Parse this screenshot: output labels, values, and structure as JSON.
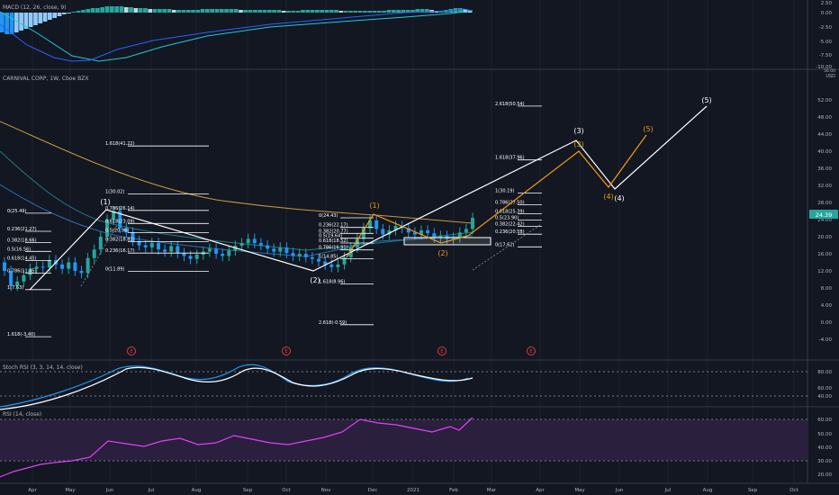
{
  "colors": {
    "background": "#131722",
    "grid": "#1e2230",
    "separator": "#363a45",
    "text": "#b2b5be",
    "bull": "#26a69a",
    "bear": "#2196f3",
    "macd_line": "#2962ff",
    "macd_signal": "#26c6da",
    "ema_orange": "#c79a3b",
    "ema_teal": "#1e7f88",
    "ema_blue": "#2a6fb0",
    "wave_white": "#ffffff",
    "wave_orange": "#f39c12",
    "rsi": "#e040fb",
    "rsi_band": "#2a1f3d",
    "event_marker": "#e53935",
    "price_tag": "#26a69a"
  },
  "macd": {
    "title": "MACD (12, 26, close, 9)",
    "axis_ticks": [
      "2.50",
      "0.00",
      "-2.50",
      "-5.00",
      "-7.50",
      "-10.00"
    ]
  },
  "price": {
    "title": "CARNIVAL CORP, 1W, Cboe BZX",
    "currency": "USD",
    "top_value": "56.00",
    "axis_ticks": [
      "52.00",
      "48.00",
      "44.00",
      "40.00",
      "36.00",
      "32.00",
      "28.00",
      "24.00",
      "20.00",
      "16.00",
      "12.00",
      "8.00",
      "4.00",
      "0.00",
      "-4.00"
    ],
    "last_price": "24.39",
    "fib_left": [
      "0(25.49)",
      "0.236(21.27)",
      "0.382(18.66)",
      "0.5(16.56)",
      "0.618(14.45)",
      "0.786(11.45)",
      "1(7.63)",
      "1.618(-3.40)"
    ],
    "fib_mid": [
      "1.618(41.22)",
      "1(30.02)",
      "0.786(26.14)",
      "0.618(23.09)",
      "0.5(20.96)",
      "0.382(18.82)",
      "0.236(16.17)",
      "0(11.89)"
    ],
    "fib_right1": [
      "0(24.43)",
      "0.236(22.17)",
      "0.382(20.77)",
      "0.5(19.64)",
      "0.618(18.52)",
      "0.786(16.91)",
      "1(14.85)",
      "1.618(8.96)",
      "2.618(-0.59)"
    ],
    "fib_right2": [
      "2.618(50.54)",
      "1.618(37.96)",
      "1(30.19)",
      "0.786(27.50)",
      "0.618(25.39)",
      "0.5(23.90)",
      "0.382(22.42)",
      "0.236(20.58)",
      "0(17.62)"
    ],
    "wave_labels": [
      "(1)",
      "(2)",
      "(3)",
      "(4)",
      "(5)"
    ],
    "event_markers": [
      "E",
      "E",
      "E",
      "E"
    ]
  },
  "stoch": {
    "title": "Stoch RSI (3, 3, 14, 14, close)",
    "axis_ticks": [
      "80.00",
      "60.00",
      "40.00"
    ]
  },
  "rsi": {
    "title": "RSI (14, close)",
    "axis_ticks": [
      "60.00",
      "50.00",
      "40.00",
      "30.00",
      "20.00"
    ]
  },
  "x_axis": {
    "labels": [
      "Apr",
      "May",
      "Jun",
      "Jul",
      "Aug",
      "Sep",
      "Oct",
      "Nov",
      "Dec",
      "2021",
      "Feb",
      "Mar",
      "Apr",
      "May",
      "Jun",
      "Jul",
      "Aug",
      "Sep",
      "Oct"
    ]
  },
  "chart_data": {
    "type": "candlestick",
    "symbol": "CARNIVAL CORP, 1W, Cboe BZX",
    "interval": "1W",
    "y_unit": "USD",
    "ylim": [
      -6,
      56
    ],
    "last_price": 24.39,
    "approximate_weekly_closes": [
      {
        "month": "Apr",
        "close": 9.5
      },
      {
        "month": "May",
        "close": 14.5
      },
      {
        "month": "Jun",
        "close": 22.0
      },
      {
        "month": "Jul",
        "close": 15.5
      },
      {
        "month": "Aug",
        "close": 18.0
      },
      {
        "month": "Sep",
        "close": 16.5
      },
      {
        "month": "Oct",
        "close": 13.5
      },
      {
        "month": "Nov",
        "close": 22.5
      },
      {
        "month": "Dec",
        "close": 20.5
      },
      {
        "month": "2021",
        "close": 19.5
      },
      {
        "month": "Feb",
        "close": 24.39
      }
    ],
    "wave_count_white": [
      {
        "label": "(1)",
        "date": "Jun 2020",
        "price": 26.1
      },
      {
        "label": "(2)",
        "date": "Oct 2020",
        "price": 11.9
      },
      {
        "label": "(3)",
        "date": "May 2021",
        "price": 41.5
      },
      {
        "label": "(4)",
        "date": "Jun 2021",
        "price": 29.0
      },
      {
        "label": "(5)",
        "date": "Aug 2021",
        "price": 47.5
      }
    ],
    "wave_count_orange": [
      {
        "label": "(1)",
        "date": "Nov 2020",
        "price": 24.4
      },
      {
        "label": "(2)",
        "date": "Feb 2021",
        "price": 18.0
      },
      {
        "label": "(3)",
        "date": "May 2021",
        "price": 38.0
      },
      {
        "label": "(4)",
        "date": "May 2021",
        "price": 30.2
      },
      {
        "label": "(5)",
        "date": "Jun 2021",
        "price": 41.2
      }
    ],
    "macd_histogram_trend": "negative Apr–Jun 2020, positive afterwards",
    "stoch_rsi_last": 60,
    "rsi_last": 62
  }
}
